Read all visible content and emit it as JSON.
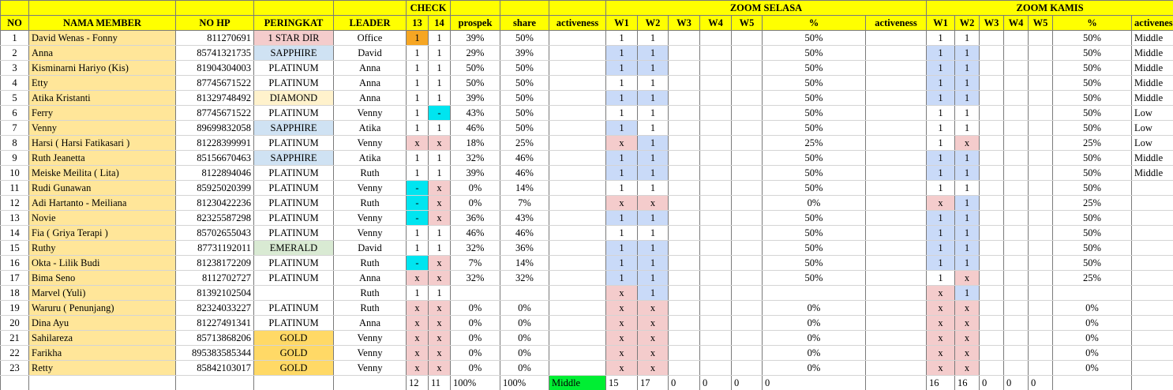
{
  "headers": {
    "no": "NO",
    "nama_member": "NAMA MEMBER",
    "no_hp": "NO HP",
    "peringkat": "PERINGKAT",
    "leader": "LEADER",
    "check": "CHECK",
    "check_13": "13",
    "check_14": "14",
    "prospek": "prospek",
    "share": "share",
    "activeness": "activeness",
    "zoom_selasa": "ZOOM SELASA",
    "zoom_kamis": "ZOOM KAMIS",
    "w1": "W1",
    "w2": "W2",
    "w3": "W3",
    "w4": "W4",
    "w5": "W5",
    "percent": "%"
  },
  "colors": {
    "header_yellow": "#ffff00",
    "name_bg": "#ffe699",
    "orange": "#f6a623",
    "cyan": "#00e5f0",
    "pink": "#f4cccc",
    "blue": "#c9daf8",
    "green": "#00ee33"
  },
  "rows": [
    {
      "no": "1",
      "name": "David Wenas - Fonny",
      "hp": "811270691",
      "rank": "1 STAR DIR",
      "leader": "Office",
      "c13": "1",
      "c14": "1",
      "prospek": "39%",
      "share": "50%",
      "act": "",
      "s1": "1",
      "s2": "1",
      "s3": "",
      "s4": "",
      "s5": "",
      "spct": "50%",
      "sact": "",
      "k1": "1",
      "k2": "1",
      "k3": "",
      "k4": "",
      "k5": "",
      "kpct": "50%",
      "kact": "Middle"
    },
    {
      "no": "2",
      "name": "Anna",
      "hp": "85741321735",
      "rank": "SAPPHIRE",
      "leader": "David",
      "c13": "1",
      "c14": "1",
      "prospek": "29%",
      "share": "39%",
      "act": "",
      "s1": "1",
      "s2": "1",
      "s3": "",
      "s4": "",
      "s5": "",
      "spct": "50%",
      "sact": "",
      "k1": "1",
      "k2": "1",
      "k3": "",
      "k4": "",
      "k5": "",
      "kpct": "50%",
      "kact": "Middle"
    },
    {
      "no": "3",
      "name": "Kisminarni Hariyo (Kis)",
      "hp": "81904304003",
      "rank": "PLATINUM",
      "leader": "Anna",
      "c13": "1",
      "c14": "1",
      "prospek": "50%",
      "share": "50%",
      "act": "",
      "s1": "1",
      "s2": "1",
      "s3": "",
      "s4": "",
      "s5": "",
      "spct": "50%",
      "sact": "",
      "k1": "1",
      "k2": "1",
      "k3": "",
      "k4": "",
      "k5": "",
      "kpct": "50%",
      "kact": "Middle"
    },
    {
      "no": "4",
      "name": "Etty",
      "hp": "87745671522",
      "rank": "PLATINUM",
      "leader": "Anna",
      "c13": "1",
      "c14": "1",
      "prospek": "50%",
      "share": "50%",
      "act": "",
      "s1": "1",
      "s2": "1",
      "s3": "",
      "s4": "",
      "s5": "",
      "spct": "50%",
      "sact": "",
      "k1": "1",
      "k2": "1",
      "k3": "",
      "k4": "",
      "k5": "",
      "kpct": "50%",
      "kact": "Middle"
    },
    {
      "no": "5",
      "name": "Atika Kristanti",
      "hp": "81329748492",
      "rank": "DIAMOND",
      "leader": "Anna",
      "c13": "1",
      "c14": "1",
      "prospek": "39%",
      "share": "50%",
      "act": "",
      "s1": "1",
      "s2": "1",
      "s3": "",
      "s4": "",
      "s5": "",
      "spct": "50%",
      "sact": "",
      "k1": "1",
      "k2": "1",
      "k3": "",
      "k4": "",
      "k5": "",
      "kpct": "50%",
      "kact": "Middle"
    },
    {
      "no": "6",
      "name": "Ferry",
      "hp": "87745671522",
      "rank": "PLATINUM",
      "leader": "Venny",
      "c13": "1",
      "c14": "-",
      "prospek": "43%",
      "share": "50%",
      "act": "",
      "s1": "1",
      "s2": "1",
      "s3": "",
      "s4": "",
      "s5": "",
      "spct": "50%",
      "sact": "",
      "k1": "1",
      "k2": "1",
      "k3": "",
      "k4": "",
      "k5": "",
      "kpct": "50%",
      "kact": "Low"
    },
    {
      "no": "7",
      "name": "Venny",
      "hp": "89699832058",
      "rank": "SAPPHIRE",
      "leader": "Atika",
      "c13": "1",
      "c14": "1",
      "prospek": "46%",
      "share": "50%",
      "act": "",
      "s1": "1",
      "s2": "1",
      "s3": "",
      "s4": "",
      "s5": "",
      "spct": "50%",
      "sact": "",
      "k1": "1",
      "k2": "1",
      "k3": "",
      "k4": "",
      "k5": "",
      "kpct": "50%",
      "kact": "Low"
    },
    {
      "no": "8",
      "name": "Harsi ( Harsi Fatikasari )",
      "hp": "81228399991",
      "rank": "PLATINUM",
      "leader": "Venny",
      "c13": "x",
      "c14": "x",
      "prospek": "18%",
      "share": "25%",
      "act": "",
      "s1": "x",
      "s2": "1",
      "s3": "",
      "s4": "",
      "s5": "",
      "spct": "25%",
      "sact": "",
      "k1": "1",
      "k2": "x",
      "k3": "",
      "k4": "",
      "k5": "",
      "kpct": "25%",
      "kact": "Low"
    },
    {
      "no": "9",
      "name": "Ruth Jeanetta",
      "hp": "85156670463",
      "rank": "SAPPHIRE",
      "leader": "Atika",
      "c13": "1",
      "c14": "1",
      "prospek": "32%",
      "share": "46%",
      "act": "",
      "s1": "1",
      "s2": "1",
      "s3": "",
      "s4": "",
      "s5": "",
      "spct": "50%",
      "sact": "",
      "k1": "1",
      "k2": "1",
      "k3": "",
      "k4": "",
      "k5": "",
      "kpct": "50%",
      "kact": "Middle"
    },
    {
      "no": "10",
      "name": "Meiske Meilita ( Lita)",
      "hp": "8122894046",
      "rank": "PLATINUM",
      "leader": "Ruth",
      "c13": "1",
      "c14": "1",
      "prospek": "39%",
      "share": "46%",
      "act": "",
      "s1": "1",
      "s2": "1",
      "s3": "",
      "s4": "",
      "s5": "",
      "spct": "50%",
      "sact": "",
      "k1": "1",
      "k2": "1",
      "k3": "",
      "k4": "",
      "k5": "",
      "kpct": "50%",
      "kact": "Middle"
    },
    {
      "no": "11",
      "name": "Rudi Gunawan",
      "hp": "85925020399",
      "rank": "PLATINUM",
      "leader": "Venny",
      "c13": "-",
      "c14": "x",
      "prospek": "0%",
      "share": "14%",
      "act": "",
      "s1": "1",
      "s2": "1",
      "s3": "",
      "s4": "",
      "s5": "",
      "spct": "50%",
      "sact": "",
      "k1": "1",
      "k2": "1",
      "k3": "",
      "k4": "",
      "k5": "",
      "kpct": "50%",
      "kact": ""
    },
    {
      "no": "12",
      "name": "Adi Hartanto - Meiliana",
      "hp": "81230422236",
      "rank": "PLATINUM",
      "leader": "Ruth",
      "c13": "-",
      "c14": "x",
      "prospek": "0%",
      "share": "7%",
      "act": "",
      "s1": "x",
      "s2": "x",
      "s3": "",
      "s4": "",
      "s5": "",
      "spct": "0%",
      "sact": "",
      "k1": "x",
      "k2": "1",
      "k3": "",
      "k4": "",
      "k5": "",
      "kpct": "25%",
      "kact": ""
    },
    {
      "no": "13",
      "name": "Novie",
      "hp": "82325587298",
      "rank": "PLATINUM",
      "leader": "Venny",
      "c13": "-",
      "c14": "x",
      "prospek": "36%",
      "share": "43%",
      "act": "",
      "s1": "1",
      "s2": "1",
      "s3": "",
      "s4": "",
      "s5": "",
      "spct": "50%",
      "sact": "",
      "k1": "1",
      "k2": "1",
      "k3": "",
      "k4": "",
      "k5": "",
      "kpct": "50%",
      "kact": ""
    },
    {
      "no": "14",
      "name": "Fia ( Griya Terapi )",
      "hp": "85702655043",
      "rank": "PLATINUM",
      "leader": "Venny",
      "c13": "1",
      "c14": "1",
      "prospek": "46%",
      "share": "46%",
      "act": "",
      "s1": "1",
      "s2": "1",
      "s3": "",
      "s4": "",
      "s5": "",
      "spct": "50%",
      "sact": "",
      "k1": "1",
      "k2": "1",
      "k3": "",
      "k4": "",
      "k5": "",
      "kpct": "50%",
      "kact": ""
    },
    {
      "no": "15",
      "name": "Ruthy",
      "hp": "87731192011",
      "rank": "EMERALD",
      "leader": "David",
      "c13": "1",
      "c14": "1",
      "prospek": "32%",
      "share": "36%",
      "act": "",
      "s1": "1",
      "s2": "1",
      "s3": "",
      "s4": "",
      "s5": "",
      "spct": "50%",
      "sact": "",
      "k1": "1",
      "k2": "1",
      "k3": "",
      "k4": "",
      "k5": "",
      "kpct": "50%",
      "kact": ""
    },
    {
      "no": "16",
      "name": "Okta - Lilik Budi",
      "hp": "81238172209",
      "rank": "PLATINUM",
      "leader": "Ruth",
      "c13": "-",
      "c14": "x",
      "prospek": "7%",
      "share": "14%",
      "act": "",
      "s1": "1",
      "s2": "1",
      "s3": "",
      "s4": "",
      "s5": "",
      "spct": "50%",
      "sact": "",
      "k1": "1",
      "k2": "1",
      "k3": "",
      "k4": "",
      "k5": "",
      "kpct": "50%",
      "kact": ""
    },
    {
      "no": "17",
      "name": "Bima Seno",
      "hp": "8112702727",
      "rank": "PLATINUM",
      "leader": "Anna",
      "c13": "x",
      "c14": "x",
      "prospek": "32%",
      "share": "32%",
      "act": "",
      "s1": "1",
      "s2": "1",
      "s3": "",
      "s4": "",
      "s5": "",
      "spct": "50%",
      "sact": "",
      "k1": "1",
      "k2": "x",
      "k3": "",
      "k4": "",
      "k5": "",
      "kpct": "25%",
      "kact": ""
    },
    {
      "no": "18",
      "name": "Marvel (Yuli)",
      "hp": "81392102504",
      "rank": "",
      "leader": "Ruth",
      "c13": "1",
      "c14": "1",
      "prospek": "",
      "share": "",
      "act": "",
      "s1": "x",
      "s2": "1",
      "s3": "",
      "s4": "",
      "s5": "",
      "spct": "",
      "sact": "",
      "k1": "x",
      "k2": "1",
      "k3": "",
      "k4": "",
      "k5": "",
      "kpct": "",
      "kact": ""
    },
    {
      "no": "19",
      "name": "Waruru ( Penunjang)",
      "hp": "82324033227",
      "rank": "PLATINUM",
      "leader": "Ruth",
      "c13": "x",
      "c14": "x",
      "prospek": "0%",
      "share": "0%",
      "act": "",
      "s1": "x",
      "s2": "x",
      "s3": "",
      "s4": "",
      "s5": "",
      "spct": "0%",
      "sact": "",
      "k1": "x",
      "k2": "x",
      "k3": "",
      "k4": "",
      "k5": "",
      "kpct": "0%",
      "kact": ""
    },
    {
      "no": "20",
      "name": "Dina Ayu",
      "hp": "81227491341",
      "rank": "PLATINUM",
      "leader": "Anna",
      "c13": "x",
      "c14": "x",
      "prospek": "0%",
      "share": "0%",
      "act": "",
      "s1": "x",
      "s2": "x",
      "s3": "",
      "s4": "",
      "s5": "",
      "spct": "0%",
      "sact": "",
      "k1": "x",
      "k2": "x",
      "k3": "",
      "k4": "",
      "k5": "",
      "kpct": "0%",
      "kact": ""
    },
    {
      "no": "21",
      "name": "Sahilareza",
      "hp": "85713868206",
      "rank": "GOLD",
      "leader": "Venny",
      "c13": "x",
      "c14": "x",
      "prospek": "0%",
      "share": "0%",
      "act": "",
      "s1": "x",
      "s2": "x",
      "s3": "",
      "s4": "",
      "s5": "",
      "spct": "0%",
      "sact": "",
      "k1": "x",
      "k2": "x",
      "k3": "",
      "k4": "",
      "k5": "",
      "kpct": "0%",
      "kact": ""
    },
    {
      "no": "22",
      "name": "Farikha",
      "hp": "895383585344",
      "rank": "GOLD",
      "leader": "Venny",
      "c13": "x",
      "c14": "x",
      "prospek": "0%",
      "share": "0%",
      "act": "",
      "s1": "x",
      "s2": "x",
      "s3": "",
      "s4": "",
      "s5": "",
      "spct": "0%",
      "sact": "",
      "k1": "x",
      "k2": "x",
      "k3": "",
      "k4": "",
      "k5": "",
      "kpct": "0%",
      "kact": ""
    },
    {
      "no": "23",
      "name": "Retty",
      "hp": "85842103017",
      "rank": "GOLD",
      "leader": "Venny",
      "c13": "x",
      "c14": "x",
      "prospek": "0%",
      "share": "0%",
      "act": "",
      "s1": "x",
      "s2": "x",
      "s3": "",
      "s4": "",
      "s5": "",
      "spct": "0%",
      "sact": "",
      "k1": "x",
      "k2": "x",
      "k3": "",
      "k4": "",
      "k5": "",
      "kpct": "0%",
      "kact": ""
    }
  ],
  "totals": {
    "c13": "12",
    "c14": "11",
    "prospek": "100%",
    "share": "100%",
    "act": "Middle",
    "s1": "15",
    "s2": "17",
    "s3": "0",
    "s4": "0",
    "s5": "0",
    "spct": "0",
    "sact": "",
    "k1": "16",
    "k2": "16",
    "k3": "0",
    "k4": "0",
    "k5": "0",
    "kpct": "",
    "kact": ""
  }
}
